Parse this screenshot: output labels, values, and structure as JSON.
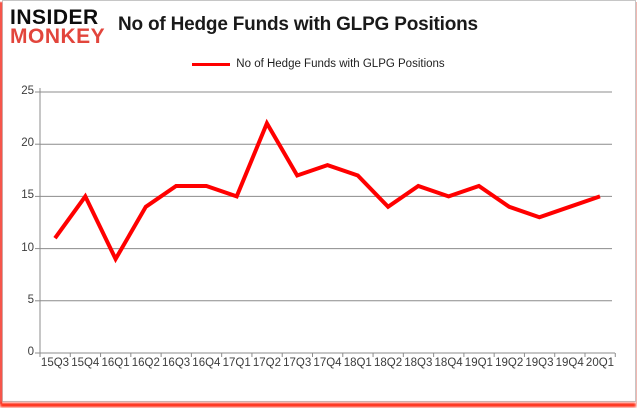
{
  "logo": {
    "line1": "INSIDER",
    "line2": "MONKEY"
  },
  "header": {
    "title": "No of Hedge Funds with GLPG Positions"
  },
  "legend": {
    "label": "No of Hedge Funds with GLPG Positions"
  },
  "colors": {
    "series_red": "#ff0000",
    "logo_red": "#e2453c",
    "grid_gray": "#8c8c8c",
    "axis_gray": "#8c8c8c",
    "axis_text": "#3d3d3d"
  },
  "chart_data": {
    "type": "line",
    "title": "No of Hedge Funds with GLPG Positions",
    "categories": [
      "15Q3",
      "15Q4",
      "16Q1",
      "16Q2",
      "16Q3",
      "16Q4",
      "17Q1",
      "17Q2",
      "17Q3",
      "17Q4",
      "18Q1",
      "18Q2",
      "18Q3",
      "18Q4",
      "19Q1",
      "19Q2",
      "19Q3",
      "19Q4",
      "20Q1"
    ],
    "series": [
      {
        "name": "No of Hedge Funds with GLPG Positions",
        "color": "#ff0000",
        "values": [
          11,
          15,
          9,
          14,
          16,
          16,
          15,
          22,
          17,
          18,
          17,
          14,
          16,
          15,
          16,
          14,
          13,
          14,
          15
        ]
      }
    ],
    "xlabel": "",
    "ylabel": "",
    "ylim": [
      0,
      25
    ],
    "yticks": [
      0,
      5,
      10,
      15,
      20,
      25
    ],
    "grid": "horizontal",
    "legend_position": "top-center"
  }
}
